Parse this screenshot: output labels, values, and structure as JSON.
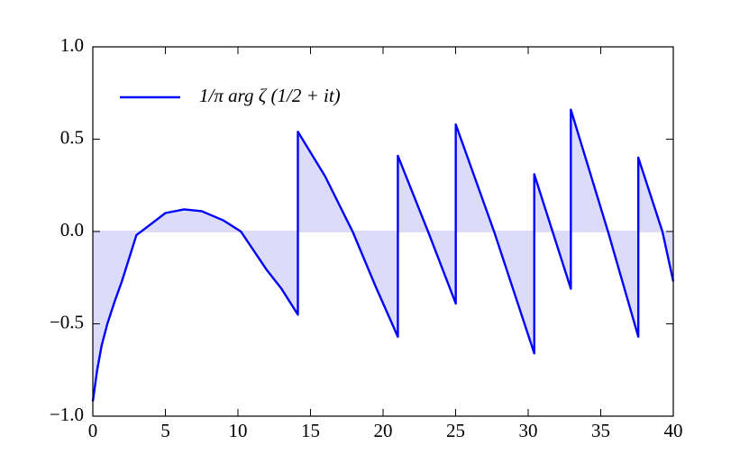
{
  "chart_data": {
    "type": "line",
    "x": [
      0,
      0.3,
      0.6,
      1,
      1.5,
      2,
      3,
      4,
      5,
      6.3,
      7.5,
      9,
      10.2,
      12,
      13,
      14.13,
      14.13,
      16,
      17.9,
      19.5,
      21.02,
      21.02,
      23.1,
      25.01,
      25.01,
      27.65,
      30.42,
      30.42,
      32.94,
      32.94,
      35.5,
      37.59,
      37.59,
      39.25,
      40
    ],
    "series": [
      {
        "name": "1/π arg ζ (1/2 + it)",
        "color": "#0000ff",
        "fill": "#dcdcf8",
        "values": [
          -0.92,
          -0.75,
          -0.62,
          -0.5,
          -0.38,
          -0.27,
          -0.02,
          0.04,
          0.1,
          0.12,
          0.11,
          0.06,
          0,
          -0.21,
          -0.31,
          -0.45,
          0.54,
          0.3,
          0,
          -0.3,
          -0.57,
          0.41,
          0,
          -0.39,
          0.58,
          0,
          -0.66,
          0.31,
          -0.31,
          0.66,
          0,
          -0.57,
          0.4,
          0,
          -0.27
        ]
      }
    ],
    "xlim": [
      0,
      40
    ],
    "xticks": [
      0,
      5,
      10,
      15,
      20,
      25,
      30,
      35,
      40
    ],
    "ylim": [
      -1,
      1
    ],
    "yticks": [
      {
        "value": -1,
        "label": "−1.0"
      },
      {
        "value": -0.5,
        "label": "−0.5"
      },
      {
        "value": 0,
        "label": "0.0"
      },
      {
        "value": 0.5,
        "label": "0.5"
      },
      {
        "value": 1,
        "label": "1.0"
      }
    ],
    "legend": "upper left",
    "grid": false
  }
}
